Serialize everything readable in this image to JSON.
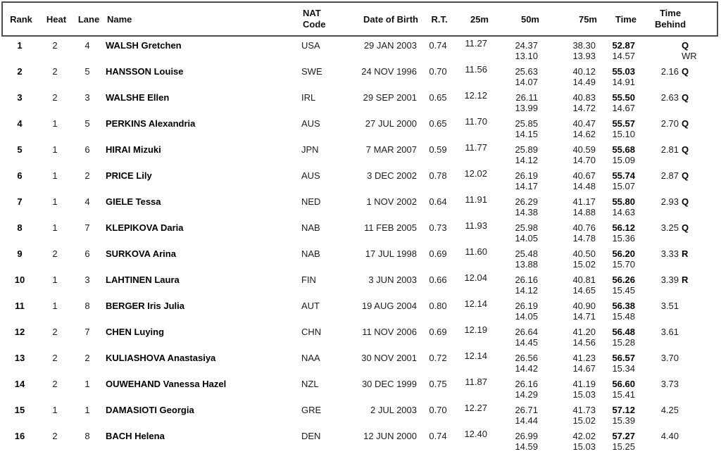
{
  "table": {
    "headers": {
      "rank": "Rank",
      "heat": "Heat",
      "lane": "Lane",
      "name": "Name",
      "nat_line1": "NAT",
      "nat_line2": "Code",
      "dob": "Date of Birth",
      "rt": "R.T.",
      "m25": "25m",
      "m50": "50m",
      "m75": "75m",
      "time": "Time",
      "behind_line1": "Time",
      "behind_line2": "Behind"
    },
    "rows": [
      {
        "rank": "1",
        "heat": "2",
        "lane": "4",
        "name": "WALSH Gretchen",
        "nat": "USA",
        "dob": "29 JAN 2003",
        "rt": "0.74",
        "m25": "11.27",
        "m50": "24.37",
        "m75": "38.30",
        "time": "52.87",
        "s50": "13.10",
        "s75": "13.93",
        "stime": "14.57",
        "behind": "",
        "marker": "Q",
        "note": "WR"
      },
      {
        "rank": "2",
        "heat": "2",
        "lane": "5",
        "name": "HANSSON Louise",
        "nat": "SWE",
        "dob": "24 NOV 1996",
        "rt": "0.70",
        "m25": "11.56",
        "m50": "25.63",
        "m75": "40.12",
        "time": "55.03",
        "s50": "14.07",
        "s75": "14.49",
        "stime": "14.91",
        "behind": "2.16",
        "marker": "Q",
        "note": ""
      },
      {
        "rank": "3",
        "heat": "2",
        "lane": "3",
        "name": "WALSHE Ellen",
        "nat": "IRL",
        "dob": "29 SEP 2001",
        "rt": "0.65",
        "m25": "12.12",
        "m50": "26.11",
        "m75": "40.83",
        "time": "55.50",
        "s50": "13.99",
        "s75": "14.72",
        "stime": "14.67",
        "behind": "2.63",
        "marker": "Q",
        "note": ""
      },
      {
        "rank": "4",
        "heat": "1",
        "lane": "5",
        "name": "PERKINS Alexandria",
        "nat": "AUS",
        "dob": "27 JUL 2000",
        "rt": "0.65",
        "m25": "11.70",
        "m50": "25.85",
        "m75": "40.47",
        "time": "55.57",
        "s50": "14.15",
        "s75": "14.62",
        "stime": "15.10",
        "behind": "2.70",
        "marker": "Q",
        "note": ""
      },
      {
        "rank": "5",
        "heat": "1",
        "lane": "6",
        "name": "HIRAI Mizuki",
        "nat": "JPN",
        "dob": "7 MAR 2007",
        "rt": "0.59",
        "m25": "11.77",
        "m50": "25.89",
        "m75": "40.59",
        "time": "55.68",
        "s50": "14.12",
        "s75": "14.70",
        "stime": "15.09",
        "behind": "2.81",
        "marker": "Q",
        "note": ""
      },
      {
        "rank": "6",
        "heat": "1",
        "lane": "2",
        "name": "PRICE Lily",
        "nat": "AUS",
        "dob": "3 DEC 2002",
        "rt": "0.78",
        "m25": "12.02",
        "m50": "26.19",
        "m75": "40.67",
        "time": "55.74",
        "s50": "14.17",
        "s75": "14.48",
        "stime": "15.07",
        "behind": "2.87",
        "marker": "Q",
        "note": ""
      },
      {
        "rank": "7",
        "heat": "1",
        "lane": "4",
        "name": "GIELE Tessa",
        "nat": "NED",
        "dob": "1 NOV 2002",
        "rt": "0.64",
        "m25": "11.91",
        "m50": "26.29",
        "m75": "41.17",
        "time": "55.80",
        "s50": "14.38",
        "s75": "14.88",
        "stime": "14.63",
        "behind": "2.93",
        "marker": "Q",
        "note": ""
      },
      {
        "rank": "8",
        "heat": "1",
        "lane": "7",
        "name": "KLEPIKOVA Daria",
        "nat": "NAB",
        "dob": "11 FEB 2005",
        "rt": "0.73",
        "m25": "11.93",
        "m50": "25.98",
        "m75": "40.76",
        "time": "56.12",
        "s50": "14.05",
        "s75": "14.78",
        "stime": "15.36",
        "behind": "3.25",
        "marker": "Q",
        "note": ""
      },
      {
        "rank": "9",
        "heat": "2",
        "lane": "6",
        "name": "SURKOVA Arina",
        "nat": "NAB",
        "dob": "17 JUL 1998",
        "rt": "0.69",
        "m25": "11.60",
        "m50": "25.48",
        "m75": "40.50",
        "time": "56.20",
        "s50": "13.88",
        "s75": "15.02",
        "stime": "15.70",
        "behind": "3.33",
        "marker": "R",
        "note": ""
      },
      {
        "rank": "10",
        "heat": "1",
        "lane": "3",
        "name": "LAHTINEN Laura",
        "nat": "FIN",
        "dob": "3 JUN 2003",
        "rt": "0.66",
        "m25": "12.04",
        "m50": "26.16",
        "m75": "40.81",
        "time": "56.26",
        "s50": "14.12",
        "s75": "14.65",
        "stime": "15.45",
        "behind": "3.39",
        "marker": "R",
        "note": ""
      },
      {
        "rank": "11",
        "heat": "1",
        "lane": "8",
        "name": "BERGER Iris Julia",
        "nat": "AUT",
        "dob": "19 AUG 2004",
        "rt": "0.80",
        "m25": "12.14",
        "m50": "26.19",
        "m75": "40.90",
        "time": "56.38",
        "s50": "14.05",
        "s75": "14.71",
        "stime": "15.48",
        "behind": "3.51",
        "marker": "",
        "note": ""
      },
      {
        "rank": "12",
        "heat": "2",
        "lane": "7",
        "name": "CHEN Luying",
        "nat": "CHN",
        "dob": "11 NOV 2006",
        "rt": "0.69",
        "m25": "12.19",
        "m50": "26.64",
        "m75": "41.20",
        "time": "56.48",
        "s50": "14.45",
        "s75": "14.56",
        "stime": "15.28",
        "behind": "3.61",
        "marker": "",
        "note": ""
      },
      {
        "rank": "13",
        "heat": "2",
        "lane": "2",
        "name": "KULIASHOVA Anastasiya",
        "nat": "NAA",
        "dob": "30 NOV 2001",
        "rt": "0.72",
        "m25": "12.14",
        "m50": "26.56",
        "m75": "41.23",
        "time": "56.57",
        "s50": "14.42",
        "s75": "14.67",
        "stime": "15.34",
        "behind": "3.70",
        "marker": "",
        "note": ""
      },
      {
        "rank": "14",
        "heat": "2",
        "lane": "1",
        "name": "OUWEHAND Vanessa Hazel",
        "nat": "NZL",
        "dob": "30 DEC 1999",
        "rt": "0.75",
        "m25": "11.87",
        "m50": "26.16",
        "m75": "41.19",
        "time": "56.60",
        "s50": "14.29",
        "s75": "15.03",
        "stime": "15.41",
        "behind": "3.73",
        "marker": "",
        "note": ""
      },
      {
        "rank": "15",
        "heat": "1",
        "lane": "1",
        "name": "DAMASIOTI Georgia",
        "nat": "GRE",
        "dob": "2 JUL 2003",
        "rt": "0.70",
        "m25": "12.27",
        "m50": "26.71",
        "m75": "41.73",
        "time": "57.12",
        "s50": "14.44",
        "s75": "15.02",
        "stime": "15.39",
        "behind": "4.25",
        "marker": "",
        "note": ""
      },
      {
        "rank": "16",
        "heat": "2",
        "lane": "8",
        "name": "BACH Helena",
        "nat": "DEN",
        "dob": "12 JUN 2000",
        "rt": "0.74",
        "m25": "12.40",
        "m50": "26.99",
        "m75": "42.02",
        "time": "57.27",
        "s50": "14.59",
        "s75": "15.03",
        "stime": "15.25",
        "behind": "4.40",
        "marker": "",
        "note": ""
      }
    ]
  },
  "colors": {
    "text": "#1c1c1c",
    "border": "#4e4e4e",
    "background": "#ffffff"
  }
}
